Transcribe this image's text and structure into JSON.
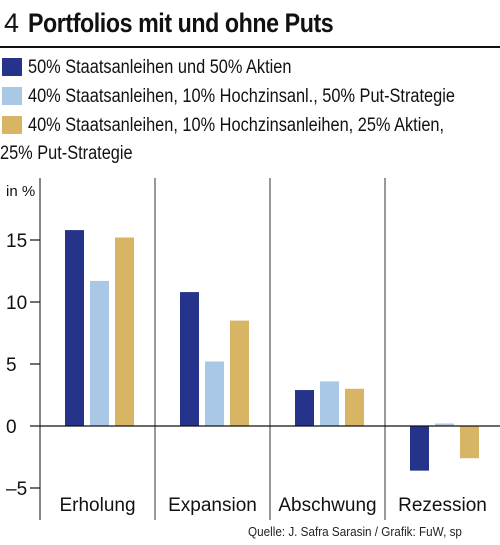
{
  "figure_number": "4",
  "title": "Portfolios mit und ohne Puts",
  "legend": [
    {
      "label": "50% Staatsanleihen und 50% Aktien",
      "color": "#26338a"
    },
    {
      "label": "40% Staatsanleihen, 10% Hochzinsanl., 50% Put-Strategie",
      "color": "#a9c8e6"
    },
    {
      "label": "40% Staatsanleihen, 10% Hochzinsanleihen, 25% Aktien,",
      "label2": "25% Put-Strategie",
      "color": "#d8b465"
    }
  ],
  "source": "Quelle: J. Safra Sarasin / Grafik: FuW, sp",
  "chart_data": {
    "type": "bar",
    "ylabel": "in %",
    "ylim": [
      -5,
      17
    ],
    "yticks": [
      15,
      10,
      5,
      0,
      -5
    ],
    "ytick_labels": [
      "15",
      "10",
      "5",
      "0",
      "–5"
    ],
    "grid": false,
    "legend_position": "top",
    "categories": [
      "Erholung",
      "Expansion",
      "Abschwung",
      "Rezession"
    ],
    "series": [
      {
        "name": "50% Staatsanleihen und 50% Aktien",
        "color": "#26338a",
        "values": [
          15.8,
          10.8,
          2.9,
          -3.6
        ]
      },
      {
        "name": "40% Staatsanleihen, 10% Hochzinsanl., 50% Put-Strategie",
        "color": "#a9c8e6",
        "values": [
          11.7,
          5.2,
          3.6,
          0.2
        ]
      },
      {
        "name": "40% Staatsanleihen, 10% Hochzinsanleihen, 25% Aktien, 25% Put-Strategie",
        "color": "#d8b465",
        "values": [
          15.2,
          8.5,
          3.0,
          -2.6
        ]
      }
    ]
  }
}
